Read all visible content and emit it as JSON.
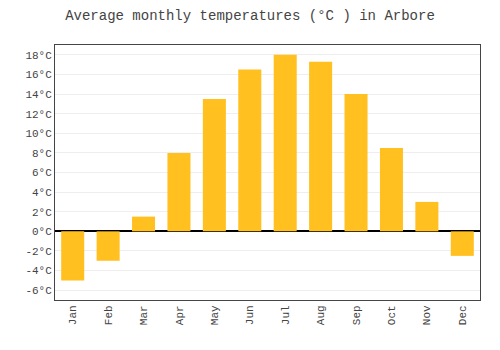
{
  "chart_data": {
    "type": "bar",
    "title": "Average monthly temperatures (°C ) in Arbore",
    "categories": [
      "Jan",
      "Feb",
      "Mar",
      "Apr",
      "May",
      "Jun",
      "Jul",
      "Aug",
      "Sep",
      "Oct",
      "Nov",
      "Dec"
    ],
    "values": [
      -5,
      -3,
      1.5,
      8,
      13.5,
      16.5,
      18,
      17.3,
      14,
      8.5,
      3,
      -2.5
    ],
    "color": "#FFC020",
    "ylim": [
      -7,
      19
    ],
    "yticks": [
      {
        "value": -6,
        "label": "-6°C"
      },
      {
        "value": -4,
        "label": "-4°C"
      },
      {
        "value": -2,
        "label": "-2°C"
      },
      {
        "value": 0,
        "label": "0°C"
      },
      {
        "value": 2,
        "label": "2°C"
      },
      {
        "value": 4,
        "label": "4°C"
      },
      {
        "value": 6,
        "label": "6°C"
      },
      {
        "value": 8,
        "label": "8°C"
      },
      {
        "value": 10,
        "label": "10°C"
      },
      {
        "value": 12,
        "label": "12°C"
      },
      {
        "value": 14,
        "label": "14°C"
      },
      {
        "value": 16,
        "label": "16°C"
      },
      {
        "value": 18,
        "label": "18°C"
      }
    ],
    "grid": true
  }
}
